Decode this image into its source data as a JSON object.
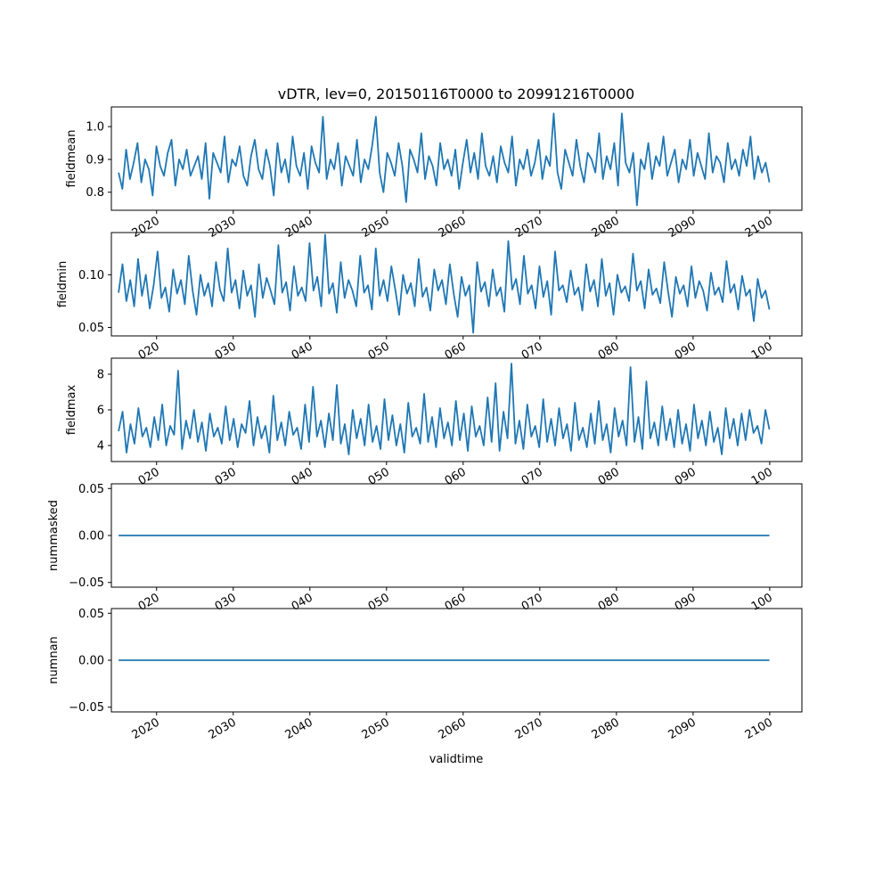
{
  "figure": {
    "title": "vDTR, lev=0, 20150116T0000 to 20991216T0000",
    "xlabel": "validtime",
    "line_color": "#1f77b4"
  },
  "chart_data": [
    {
      "type": "line",
      "ylabel": "fieldmean",
      "xlim": [
        2014.1,
        2104.2
      ],
      "ylim": [
        0.745,
        1.06
      ],
      "x_ticks": [
        2020,
        2030,
        2040,
        2050,
        2060,
        2070,
        2080,
        2090,
        2100
      ],
      "x_tick_labels": [
        "2020",
        "2030",
        "2040",
        "2050",
        "2060",
        "2070",
        "2080",
        "2090",
        "2100"
      ],
      "y_ticks": [
        0.8,
        0.9,
        1.0
      ],
      "y_tick_labels": [
        "0.8",
        "0.9",
        "1.0"
      ],
      "x_start": 2015.04,
      "x_end": 2099.96,
      "series": [
        {
          "values": [
            0.86,
            0.81,
            0.93,
            0.84,
            0.89,
            0.95,
            0.83,
            0.9,
            0.87,
            0.79,
            0.94,
            0.88,
            0.85,
            0.92,
            0.96,
            0.82,
            0.9,
            0.87,
            0.93,
            0.85,
            0.88,
            0.91,
            0.84,
            0.95,
            0.78,
            0.92,
            0.89,
            0.86,
            0.97,
            0.83,
            0.9,
            0.88,
            0.94,
            0.85,
            0.82,
            0.91,
            0.96,
            0.87,
            0.84,
            0.93,
            0.88,
            0.79,
            0.95,
            0.86,
            0.9,
            0.83,
            0.97,
            0.88,
            0.85,
            0.92,
            0.81,
            0.94,
            0.89,
            0.86,
            1.03,
            0.84,
            0.9,
            0.87,
            0.95,
            0.82,
            0.91,
            0.88,
            0.85,
            0.96,
            0.83,
            0.9,
            0.87,
            0.94,
            1.03,
            0.86,
            0.8,
            0.92,
            0.89,
            0.85,
            0.95,
            0.88,
            0.77,
            0.93,
            0.9,
            0.86,
            0.98,
            0.84,
            0.91,
            0.88,
            0.82,
            0.95,
            0.87,
            0.9,
            0.85,
            0.93,
            0.81,
            0.89,
            0.96,
            0.86,
            0.92,
            0.84,
            0.98,
            0.88,
            0.85,
            0.91,
            0.83,
            0.94,
            0.89,
            0.86,
            0.97,
            0.82,
            0.9,
            0.87,
            0.93,
            0.85,
            0.89,
            0.96,
            0.84,
            0.91,
            0.88,
            1.04,
            0.86,
            0.81,
            0.93,
            0.89,
            0.85,
            0.96,
            0.88,
            0.83,
            0.92,
            0.9,
            0.86,
            0.98,
            0.84,
            0.91,
            0.87,
            0.95,
            0.82,
            1.04,
            0.89,
            0.86,
            0.92,
            0.76,
            0.9,
            0.87,
            0.95,
            0.84,
            0.91,
            0.88,
            0.97,
            0.85,
            0.89,
            0.93,
            0.83,
            0.9,
            0.87,
            0.96,
            0.85,
            0.92,
            0.88,
            0.84,
            0.98,
            0.86,
            0.91,
            0.89,
            0.83,
            0.95,
            0.87,
            0.9,
            0.85,
            0.93,
            0.88,
            0.97,
            0.84,
            0.91,
            0.86,
            0.89,
            0.83
          ]
        }
      ]
    },
    {
      "type": "line",
      "ylabel": "fieldmin",
      "xlim": [
        2014.1,
        2104.2
      ],
      "ylim": [
        0.042,
        0.14
      ],
      "x_ticks": [
        2020,
        2030,
        2040,
        2050,
        2060,
        2070,
        2080,
        2090,
        2100
      ],
      "x_tick_labels": [
        "020",
        "030",
        "040",
        "050",
        "060",
        "070",
        "080",
        "090",
        "100"
      ],
      "y_ticks": [
        0.05,
        0.1
      ],
      "y_tick_labels": [
        "0.05",
        "0.10"
      ],
      "x_start": 2015.04,
      "x_end": 2099.96,
      "series": [
        {
          "values": [
            0.083,
            0.11,
            0.075,
            0.095,
            0.07,
            0.115,
            0.08,
            0.1,
            0.068,
            0.09,
            0.122,
            0.078,
            0.088,
            0.065,
            0.105,
            0.082,
            0.095,
            0.072,
            0.118,
            0.085,
            0.062,
            0.1,
            0.08,
            0.092,
            0.07,
            0.112,
            0.086,
            0.075,
            0.125,
            0.083,
            0.095,
            0.068,
            0.104,
            0.08,
            0.09,
            0.06,
            0.11,
            0.078,
            0.097,
            0.085,
            0.072,
            0.128,
            0.083,
            0.093,
            0.066,
            0.108,
            0.08,
            0.088,
            0.075,
            0.13,
            0.085,
            0.098,
            0.07,
            0.138,
            0.082,
            0.092,
            0.064,
            0.112,
            0.078,
            0.095,
            0.085,
            0.07,
            0.118,
            0.083,
            0.09,
            0.067,
            0.125,
            0.08,
            0.095,
            0.075,
            0.108,
            0.086,
            0.062,
            0.1,
            0.082,
            0.092,
            0.07,
            0.115,
            0.079,
            0.088,
            0.066,
            0.105,
            0.085,
            0.095,
            0.072,
            0.11,
            0.082,
            0.06,
            0.098,
            0.08,
            0.09,
            0.045,
            0.112,
            0.084,
            0.093,
            0.07,
            0.105,
            0.08,
            0.088,
            0.065,
            0.132,
            0.086,
            0.096,
            0.072,
            0.118,
            0.082,
            0.09,
            0.068,
            0.108,
            0.079,
            0.094,
            0.062,
            0.122,
            0.085,
            0.09,
            0.074,
            0.104,
            0.081,
            0.088,
            0.066,
            0.11,
            0.084,
            0.095,
            0.07,
            0.115,
            0.08,
            0.092,
            0.062,
            0.1,
            0.083,
            0.089,
            0.075,
            0.12,
            0.085,
            0.094,
            0.068,
            0.105,
            0.081,
            0.087,
            0.073,
            0.112,
            0.084,
            0.06,
            0.098,
            0.082,
            0.09,
            0.07,
            0.108,
            0.078,
            0.094,
            0.085,
            0.066,
            0.102,
            0.081,
            0.088,
            0.074,
            0.113,
            0.083,
            0.091,
            0.067,
            0.099,
            0.08,
            0.086,
            0.056,
            0.096,
            0.078,
            0.085,
            0.067
          ]
        }
      ]
    },
    {
      "type": "line",
      "ylabel": "fieldmax",
      "xlim": [
        2014.1,
        2104.2
      ],
      "ylim": [
        3.1,
        8.9
      ],
      "x_ticks": [
        2020,
        2030,
        2040,
        2050,
        2060,
        2070,
        2080,
        2090,
        2100
      ],
      "x_tick_labels": [
        "020",
        "030",
        "040",
        "050",
        "060",
        "070",
        "080",
        "090",
        "100"
      ],
      "y_ticks": [
        4,
        6,
        8
      ],
      "y_tick_labels": [
        "4",
        "6",
        "8"
      ],
      "x_start": 2015.04,
      "x_end": 2099.96,
      "series": [
        {
          "values": [
            4.8,
            5.9,
            3.6,
            5.2,
            4.1,
            6.1,
            4.5,
            5.0,
            3.9,
            5.6,
            4.3,
            6.3,
            4.0,
            5.1,
            4.6,
            8.2,
            3.8,
            5.4,
            4.4,
            6.0,
            4.2,
            5.3,
            3.7,
            5.8,
            4.5,
            5.0,
            4.1,
            6.2,
            4.3,
            5.5,
            3.9,
            5.2,
            4.7,
            6.5,
            4.0,
            5.6,
            4.4,
            5.1,
            3.6,
            6.8,
            4.3,
            5.3,
            4.0,
            5.9,
            4.6,
            5.0,
            3.8,
            6.3,
            4.2,
            7.3,
            4.5,
            5.4,
            3.9,
            5.8,
            4.3,
            7.4,
            4.1,
            5.2,
            3.5,
            6.0,
            4.4,
            5.5,
            4.0,
            6.3,
            4.2,
            5.1,
            3.8,
            6.6,
            4.3,
            5.7,
            4.0,
            5.2,
            3.6,
            6.4,
            4.5,
            5.0,
            4.1,
            6.9,
            4.2,
            5.6,
            3.9,
            6.1,
            4.4,
            5.3,
            4.0,
            6.5,
            4.3,
            5.8,
            3.7,
            6.2,
            4.5,
            5.1,
            4.0,
            6.7,
            4.2,
            7.5,
            3.7,
            5.9,
            4.4,
            8.6,
            4.1,
            5.4,
            3.8,
            6.3,
            4.5,
            5.1,
            3.9,
            6.6,
            4.2,
            5.5,
            4.0,
            6.1,
            4.4,
            5.2,
            3.7,
            6.4,
            4.3,
            5.0,
            3.9,
            5.8,
            4.1,
            6.5,
            4.3,
            5.2,
            3.6,
            6.1,
            4.5,
            5.4,
            4.0,
            8.4,
            4.2,
            5.6,
            3.8,
            7.6,
            4.4,
            5.3,
            4.0,
            6.2,
            4.3,
            5.5,
            3.9,
            6.0,
            4.1,
            5.2,
            3.7,
            6.3,
            4.4,
            5.4,
            4.0,
            5.9,
            4.2,
            5.0,
            3.5,
            6.1,
            4.4,
            5.5,
            4.0,
            5.8,
            4.3,
            6.0,
            4.7,
            5.1,
            4.1,
            6.0,
            4.9
          ]
        }
      ]
    },
    {
      "type": "line",
      "ylabel": "nummasked",
      "xlim": [
        2014.1,
        2104.2
      ],
      "ylim": [
        -0.055,
        0.055
      ],
      "x_ticks": [
        2020,
        2030,
        2040,
        2050,
        2060,
        2070,
        2080,
        2090,
        2100
      ],
      "x_tick_labels": [
        "020",
        "030",
        "040",
        "050",
        "060",
        "070",
        "080",
        "090",
        "100"
      ],
      "y_ticks": [
        -0.05,
        0.0,
        0.05
      ],
      "y_tick_labels": [
        "−0.05",
        "0.00",
        "0.05"
      ],
      "x_start": 2015.04,
      "x_end": 2099.96,
      "series": [
        {
          "values": [
            0,
            0
          ]
        }
      ]
    },
    {
      "type": "line",
      "ylabel": "numnan",
      "xlim": [
        2014.1,
        2104.2
      ],
      "ylim": [
        -0.055,
        0.055
      ],
      "x_ticks": [
        2020,
        2030,
        2040,
        2050,
        2060,
        2070,
        2080,
        2090,
        2100
      ],
      "x_tick_labels": [
        "2020",
        "2030",
        "2040",
        "2050",
        "2060",
        "2070",
        "2080",
        "2090",
        "2100"
      ],
      "y_ticks": [
        -0.05,
        0.0,
        0.05
      ],
      "y_tick_labels": [
        "−0.05",
        "0.00",
        "0.05"
      ],
      "x_start": 2015.04,
      "x_end": 2099.96,
      "series": [
        {
          "values": [
            0,
            0
          ]
        }
      ]
    }
  ]
}
